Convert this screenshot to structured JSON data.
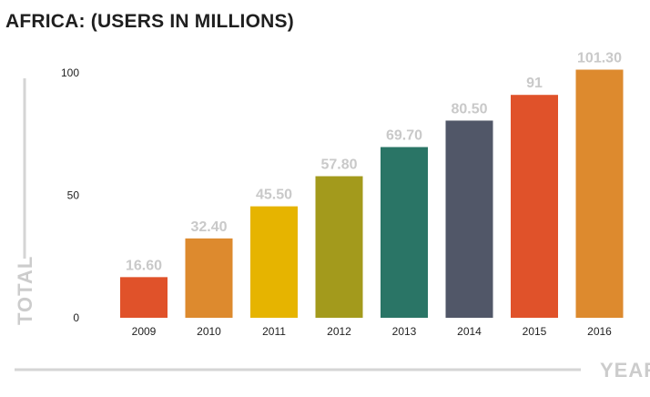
{
  "chart_data": {
    "type": "bar",
    "title": "AFRICA: (USERS IN MILLIONS)",
    "xlabel": "YEAR",
    "ylabel": "TOTAL",
    "categories": [
      "2009",
      "2010",
      "2011",
      "2012",
      "2013",
      "2014",
      "2015",
      "2016"
    ],
    "values": [
      16.6,
      32.4,
      45.5,
      57.8,
      69.7,
      80.5,
      91,
      101.3
    ],
    "data_labels": [
      "16.60",
      "32.40",
      "45.50",
      "57.80",
      "69.70",
      "80.50",
      "91",
      "101.30"
    ],
    "colors": [
      "#e0522a",
      "#dd8a2e",
      "#e6b400",
      "#a39a1c",
      "#2a7566",
      "#515768",
      "#e0522a",
      "#dd8a2e"
    ],
    "yticks": [
      "0",
      "50",
      "100"
    ],
    "ylim": [
      0,
      100
    ],
    "grid": false,
    "legend": "none"
  }
}
